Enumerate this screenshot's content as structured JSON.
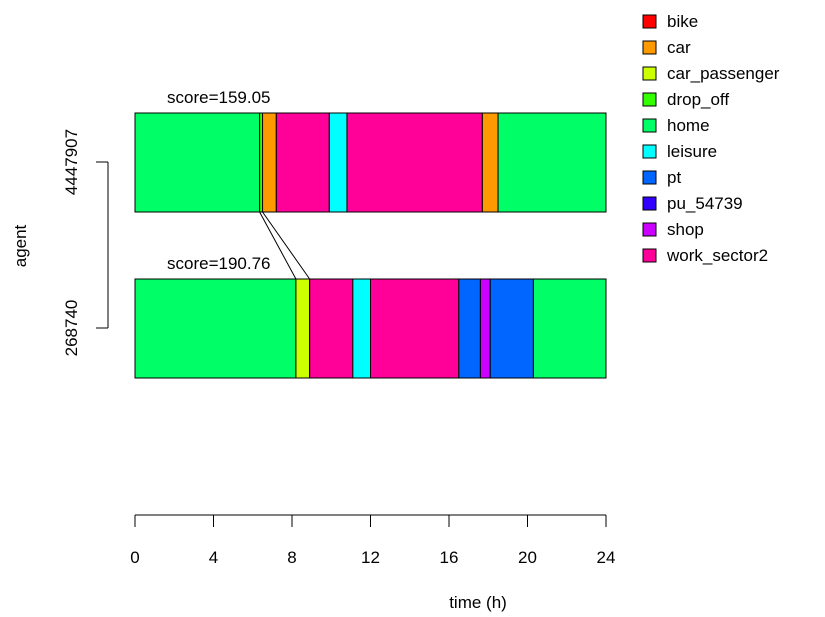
{
  "chart_data": {
    "type": "timeline",
    "xlabel": "time (h)",
    "ylabel": "agent",
    "xlim": [
      0,
      24
    ],
    "xticks": [
      0,
      4,
      8,
      12,
      16,
      20,
      24
    ],
    "legend_position": "top-right",
    "legend": [
      {
        "label": "bike",
        "color": "#ff0000"
      },
      {
        "label": "car",
        "color": "#ff9900"
      },
      {
        "label": "car_passenger",
        "color": "#ccff00"
      },
      {
        "label": "drop_off",
        "color": "#33ff00"
      },
      {
        "label": "home",
        "color": "#00ff66"
      },
      {
        "label": "leisure",
        "color": "#00ffff"
      },
      {
        "label": "pt",
        "color": "#0066ff"
      },
      {
        "label": "pu_54739",
        "color": "#3300ff"
      },
      {
        "label": "shop",
        "color": "#cc00ff"
      },
      {
        "label": "work_sector2",
        "color": "#ff0099"
      }
    ],
    "agents": [
      {
        "id": "4447907",
        "score_label": "score=159.05",
        "segments": [
          {
            "start": 0.0,
            "end": 6.35,
            "activity": "home"
          },
          {
            "start": 6.35,
            "end": 6.5,
            "activity": "drop_off"
          },
          {
            "start": 6.5,
            "end": 7.2,
            "activity": "car"
          },
          {
            "start": 7.2,
            "end": 9.9,
            "activity": "work_sector2"
          },
          {
            "start": 9.9,
            "end": 10.8,
            "activity": "leisure"
          },
          {
            "start": 10.8,
            "end": 17.7,
            "activity": "work_sector2"
          },
          {
            "start": 17.7,
            "end": 18.5,
            "activity": "car"
          },
          {
            "start": 18.5,
            "end": 24.0,
            "activity": "home"
          }
        ]
      },
      {
        "id": "268740",
        "score_label": "score=190.76",
        "segments": [
          {
            "start": 0.0,
            "end": 8.2,
            "activity": "home"
          },
          {
            "start": 8.2,
            "end": 8.9,
            "activity": "car_passenger"
          },
          {
            "start": 8.9,
            "end": 11.1,
            "activity": "work_sector2"
          },
          {
            "start": 11.1,
            "end": 12.0,
            "activity": "leisure"
          },
          {
            "start": 12.0,
            "end": 16.5,
            "activity": "work_sector2"
          },
          {
            "start": 16.5,
            "end": 17.6,
            "activity": "pt"
          },
          {
            "start": 17.6,
            "end": 18.1,
            "activity": "shop"
          },
          {
            "start": 18.1,
            "end": 20.3,
            "activity": "pt"
          },
          {
            "start": 20.3,
            "end": 24.0,
            "activity": "home"
          }
        ]
      }
    ],
    "connectors": [
      {
        "from": 6.35,
        "to": 8.2
      },
      {
        "from": 6.5,
        "to": 8.9
      }
    ]
  }
}
